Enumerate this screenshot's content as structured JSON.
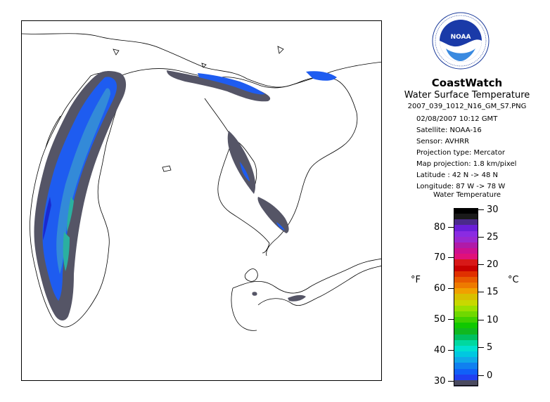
{
  "header": {
    "title": "CoastWatch",
    "subtitle": "Water Surface Temperature",
    "filename": "2007_039_1012_N16_GM_S7.PNG"
  },
  "meta": {
    "datetime": "02/08/2007    10:12 GMT",
    "satellite": "Satellite: NOAA-16",
    "sensor": "Sensor: AVHRR",
    "projection_type": "Projection type:  Mercator",
    "map_projection": "Map projection: 1.8 km/pixel",
    "latitude": "Latitude : 42 N -> 48 N",
    "longitude": "Longitude: 87 W -> 78 W"
  },
  "logo": {
    "text": "NOAA",
    "ring_text": "NATIONAL OCEANIC AND ATMOSPHERIC ADMINISTRATION · U.S. DEPARTMENT OF COMMERCE"
  },
  "scale": {
    "title": "Water Temperature",
    "unit_f": "°F",
    "unit_c": "°C",
    "f_labels": [
      "80",
      "70",
      "60",
      "50",
      "40",
      "30"
    ],
    "c_labels": [
      "30",
      "25",
      "20",
      "15",
      "10",
      "5",
      "0"
    ],
    "colors_top_to_bottom": [
      "#000000",
      "#1a1a1a",
      "#4a2a8a",
      "#6a1ed8",
      "#8a2be2",
      "#9a28d0",
      "#b01aa8",
      "#cc1090",
      "#e0107a",
      "#d81818",
      "#c80000",
      "#e03000",
      "#e85a00",
      "#ee7a00",
      "#f0a000",
      "#d8c000",
      "#c8d800",
      "#9ae000",
      "#70d800",
      "#40d000",
      "#10c800",
      "#10b820",
      "#00c060",
      "#00d8a0",
      "#00e0d0",
      "#00c8e0",
      "#10a8e8",
      "#1080f0",
      "#1060f8",
      "#2040f0",
      "#4a4a60"
    ]
  },
  "map": {
    "colors": {
      "land": "#ffffff",
      "coast": "#000000",
      "ice": "#555566",
      "cold": "#1e5cf0",
      "deep": "#1a2ad0",
      "mid": "#3b9ad0",
      "warm": "#2ab0a0"
    }
  }
}
